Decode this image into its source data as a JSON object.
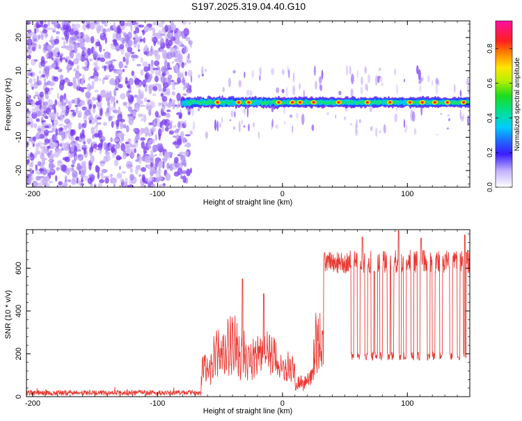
{
  "title": "S197.2025.319.04.40.G10",
  "colors": {
    "snr_line": "#e83a32",
    "spectro_dots": "#7a3cf0",
    "spectro_dots_light": "#c9b2f6"
  },
  "colorbar": {
    "label": "Normalized spectral amplitude",
    "ticks": [
      "0.0",
      "0.2",
      "0.4",
      "0.6",
      "0.8"
    ],
    "tick_values": [
      0.0,
      0.2,
      0.4,
      0.6,
      0.8
    ],
    "range": [
      0,
      0.96
    ]
  },
  "chart_data": [
    {
      "type": "heatmap",
      "name": "spectrogram",
      "xlabel": "Height of straight line (km)",
      "ylabel": "Frequency (Hz)",
      "xlim": [
        -205,
        150
      ],
      "ylim": [
        -25,
        25
      ],
      "xticks": [
        -200,
        -100,
        0,
        100
      ],
      "xtick_labels": [
        "-200",
        "-100",
        "0",
        "100"
      ],
      "yticks": [
        -20,
        -10,
        0,
        10,
        20
      ],
      "ytick_labels": [
        "-20",
        "-10",
        "0",
        "10",
        "20"
      ],
      "noise_region_x": [
        -205,
        -73
      ],
      "signal_band": {
        "x_start": -80,
        "x_end": 150,
        "frequency_hz": 0.5,
        "peaks": [
          {
            "x": -52,
            "amp": 0.9
          },
          {
            "x": -35,
            "amp": 0.95
          },
          {
            "x": -27,
            "amp": 0.85
          },
          {
            "x": -3,
            "amp": 0.9
          },
          {
            "x": 8,
            "amp": 0.9
          },
          {
            "x": 14,
            "amp": 0.85
          },
          {
            "x": 25,
            "amp": 0.9
          },
          {
            "x": 45,
            "amp": 0.85
          },
          {
            "x": 68,
            "amp": 0.9
          },
          {
            "x": 86,
            "amp": 0.9
          },
          {
            "x": 102,
            "amp": 0.85
          },
          {
            "x": 112,
            "amp": 0.9
          },
          {
            "x": 122,
            "amp": 0.85
          },
          {
            "x": 132,
            "amp": 0.9
          },
          {
            "x": 145,
            "amp": 0.9
          }
        ]
      }
    },
    {
      "type": "line",
      "name": "snr",
      "xlabel": "Height of straight line (km)",
      "ylabel": "SNR (10 * v/v)",
      "xlim": [
        -205,
        150
      ],
      "ylim": [
        0,
        780
      ],
      "xticks": [
        -200,
        -100,
        0,
        100
      ],
      "xtick_labels": [
        "-200",
        "-100",
        "0",
        "100"
      ],
      "yticks": [
        0,
        200,
        400,
        600
      ],
      "ytick_labels": [
        "0",
        "200",
        "400",
        "600"
      ],
      "segments": [
        {
          "x": [
            -205,
            -65
          ],
          "level": 18,
          "noise": 12
        },
        {
          "x": [
            -65,
            -55
          ],
          "level": 150,
          "noise": 120
        },
        {
          "x": [
            -55,
            -45
          ],
          "level": 230,
          "noise": 180
        },
        {
          "x": [
            -45,
            -35
          ],
          "level": 260,
          "noise": 230
        },
        {
          "x": [
            -35,
            -20
          ],
          "level": 210,
          "noise": 170
        },
        {
          "x": [
            -20,
            -5
          ],
          "level": 290,
          "noise": 160
        },
        {
          "x": [
            -5,
            10
          ],
          "level": 170,
          "noise": 110
        },
        {
          "x": [
            10,
            25
          ],
          "level": 60,
          "noise": 40
        },
        {
          "x": [
            25,
            33
          ],
          "level": 280,
          "noise": 220
        },
        {
          "x": [
            33,
            150
          ],
          "level": 630,
          "noise": 70
        }
      ],
      "dips": [
        55,
        60,
        66,
        71,
        74,
        78,
        84,
        87,
        93,
        97,
        103,
        108,
        116,
        120,
        126,
        134,
        140,
        145
      ],
      "dip_level": 190,
      "spikes": [
        {
          "x": -32,
          "y": 550
        },
        {
          "x": -15,
          "y": 480
        },
        {
          "x": 64,
          "y": 745
        },
        {
          "x": 93,
          "y": 775
        },
        {
          "x": 111,
          "y": 740
        },
        {
          "x": 146,
          "y": 755
        }
      ]
    }
  ]
}
